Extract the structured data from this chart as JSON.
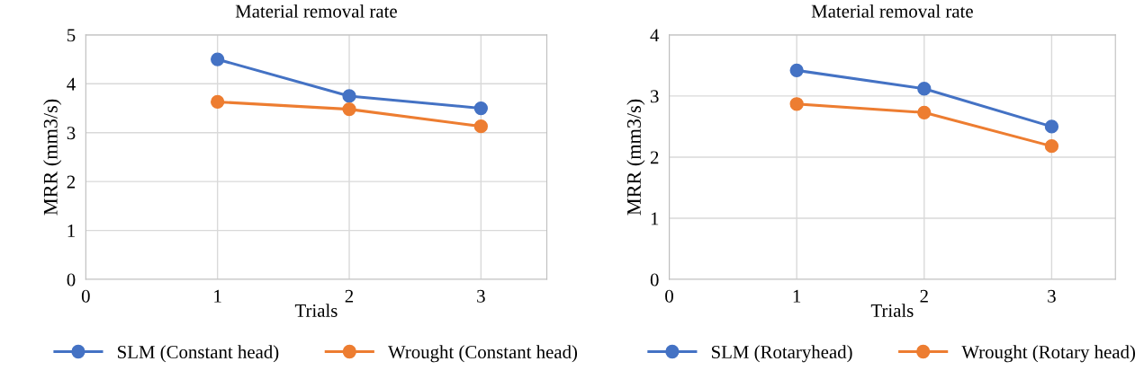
{
  "chart_data": [
    {
      "type": "line",
      "title": "Material removal rate",
      "xlabel": "Trials",
      "ylabel": "MRR (mm3/s)",
      "x": [
        1,
        2,
        3
      ],
      "series": [
        {
          "name": "SLM (Constant head)",
          "color": "#4472c4",
          "values": [
            4.5,
            3.75,
            3.5
          ]
        },
        {
          "name": "Wrought (Constant head)",
          "color": "#ed7d31",
          "values": [
            3.63,
            3.48,
            3.13
          ]
        }
      ],
      "xlim": [
        0,
        3.5
      ],
      "xticks": [
        0,
        1,
        2,
        3
      ],
      "ylim": [
        0,
        5
      ],
      "yticks": [
        0,
        1,
        2,
        3,
        4,
        5
      ],
      "grid": true,
      "legend": "bottom",
      "marker": "circle",
      "line_style": "solid"
    },
    {
      "type": "line",
      "title": "Material removal rate",
      "xlabel": "Trials",
      "ylabel": "MRR (mm3/s)",
      "x": [
        1,
        2,
        3
      ],
      "series": [
        {
          "name": "SLM (Rotaryhead)",
          "color": "#4472c4",
          "values": [
            3.42,
            3.12,
            2.5
          ]
        },
        {
          "name": "Wrought (Rotary head)",
          "color": "#ed7d31",
          "values": [
            2.87,
            2.73,
            2.18
          ]
        }
      ],
      "xlim": [
        0,
        3.5
      ],
      "xticks": [
        0,
        1,
        2,
        3
      ],
      "ylim": [
        0,
        4
      ],
      "yticks": [
        0,
        1,
        2,
        3,
        4
      ],
      "grid": true,
      "legend": "bottom",
      "marker": "circle",
      "line_style": "solid"
    }
  ]
}
